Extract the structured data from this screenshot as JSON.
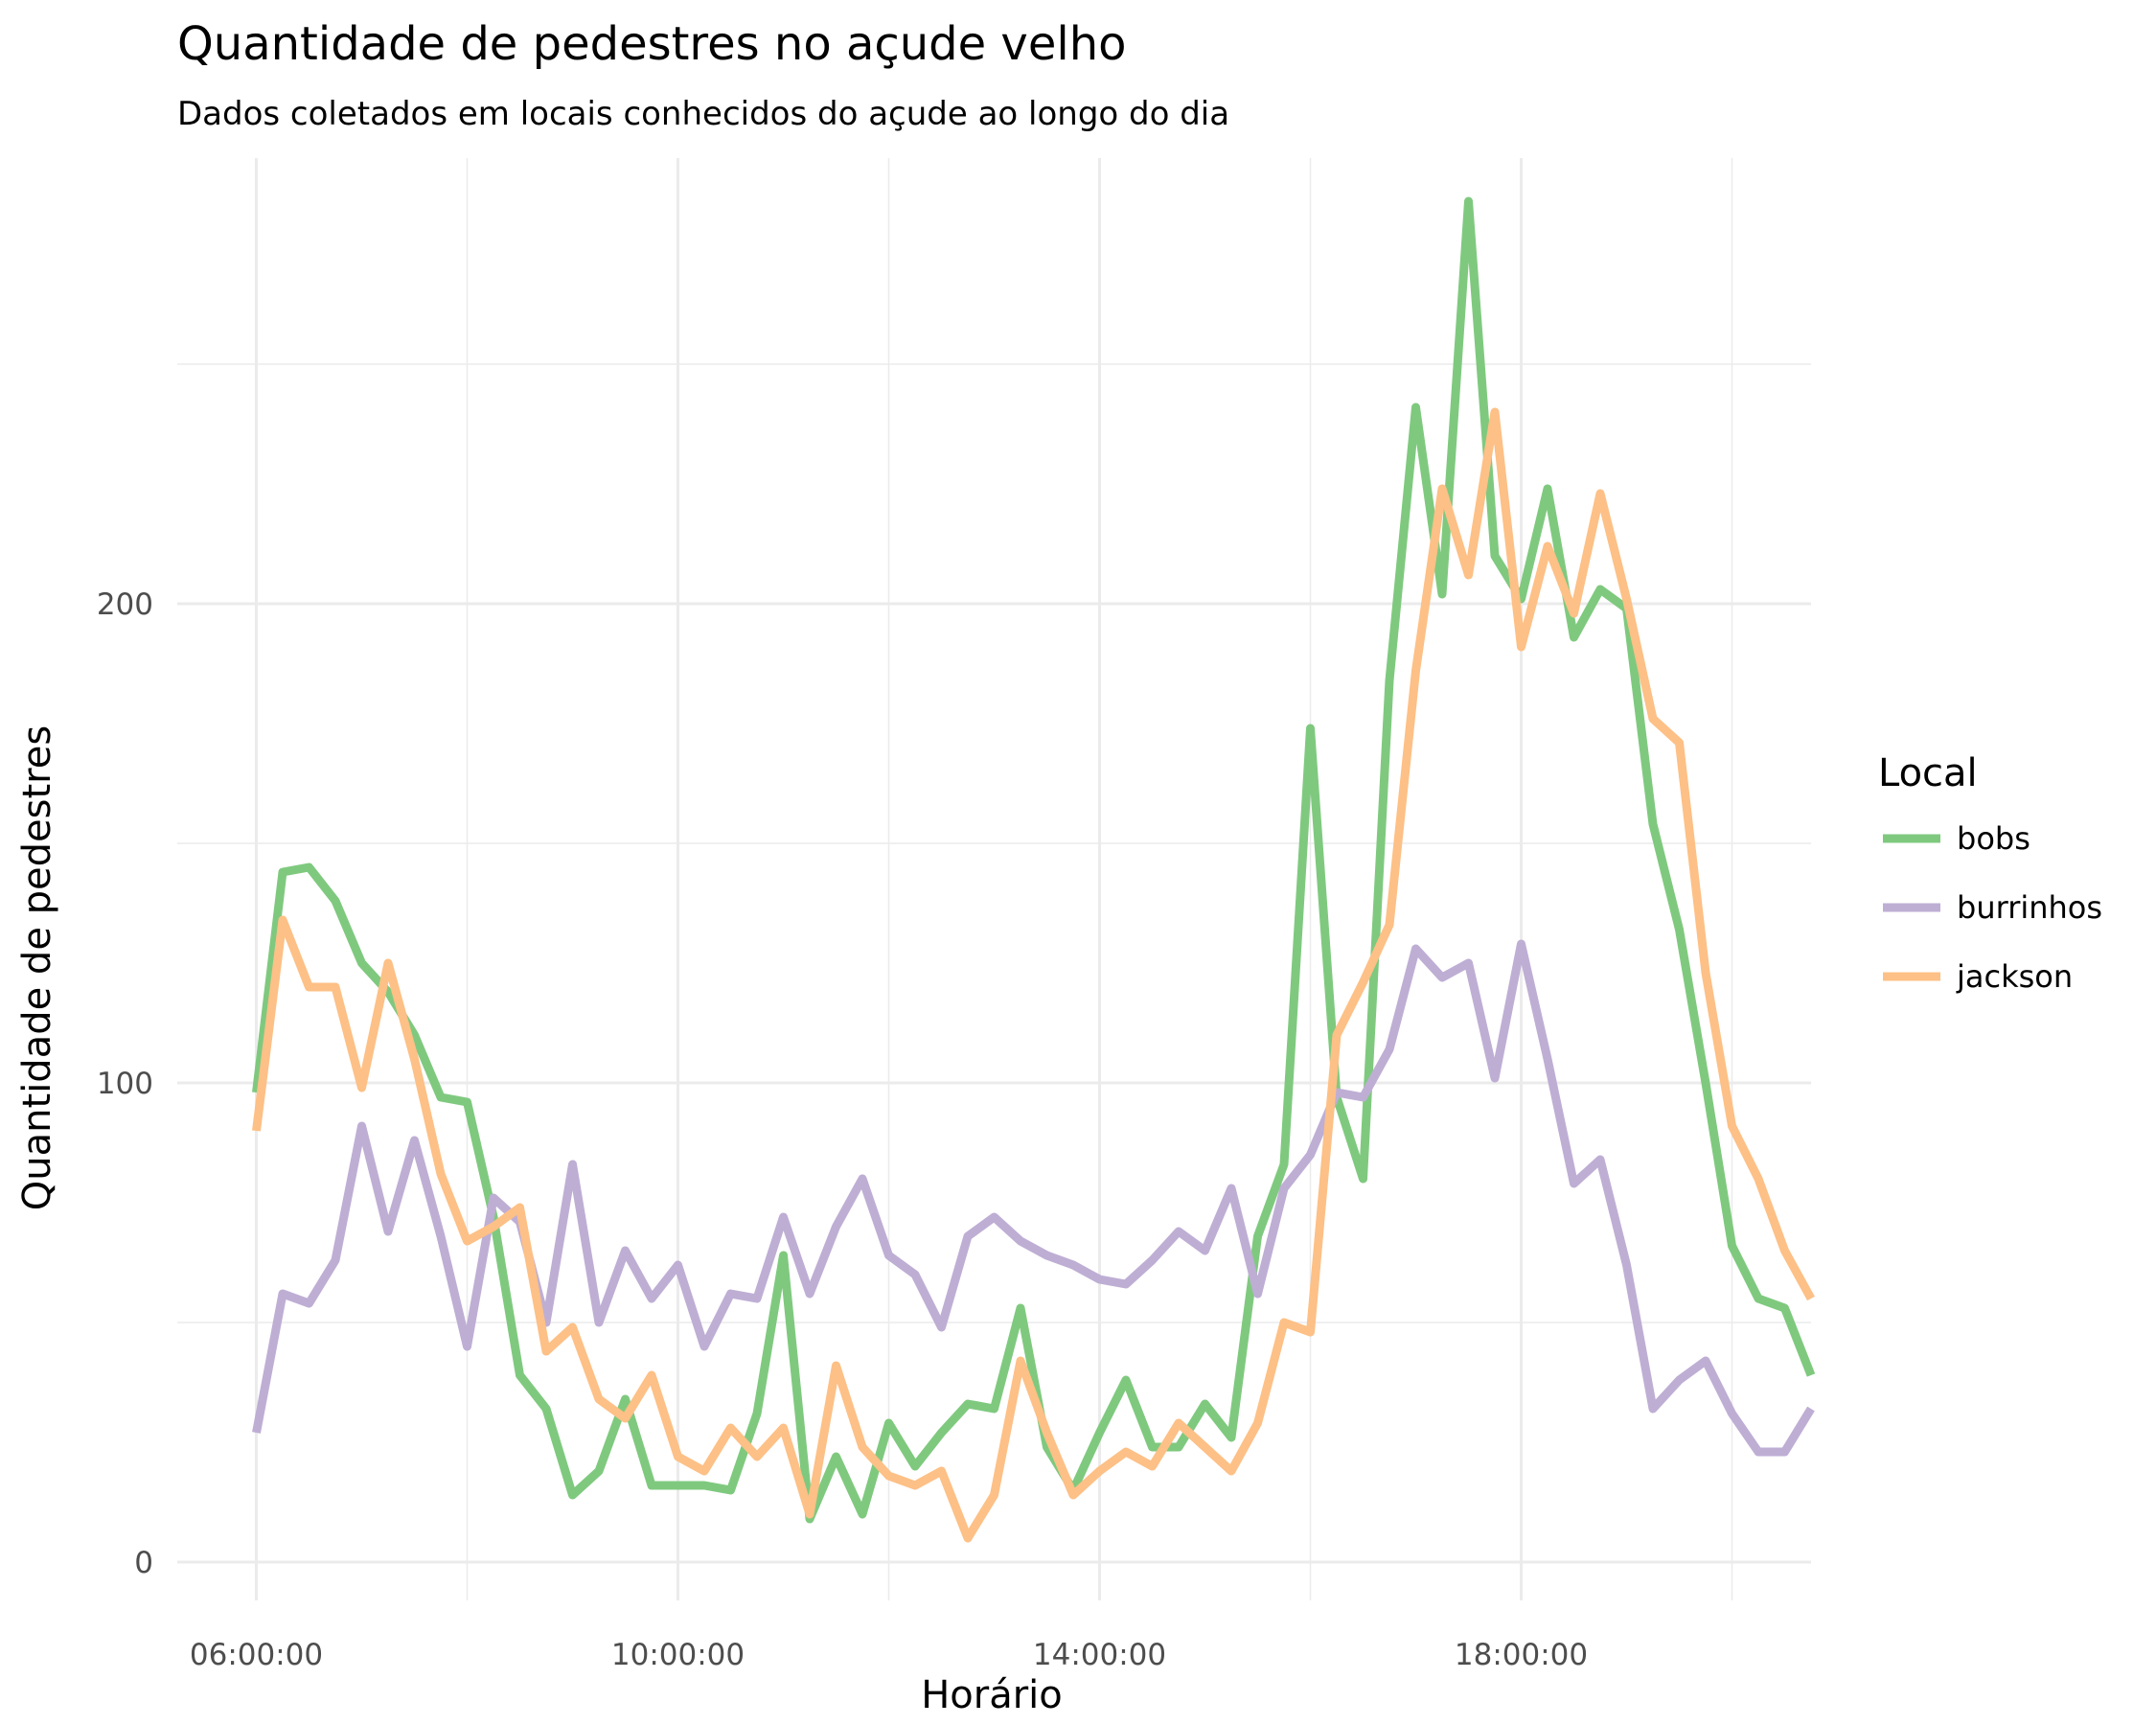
{
  "chart_data": {
    "type": "line",
    "title": "Quantidade de pedestres no açude velho",
    "subtitle": "Dados coletados em locais conhecidos do açude ao longo do dia",
    "xlabel": "Horário",
    "ylabel": "Quantidade de pedestres",
    "x_tick_labels": [
      "06:00:00",
      "10:00:00",
      "14:00:00",
      "18:00:00"
    ],
    "x_tick_values": [
      "06:00:00",
      "10:00:00",
      "14:00:00",
      "18:00:00"
    ],
    "y_tick_labels": [
      "0",
      "100",
      "200"
    ],
    "y_tick_values": [
      0,
      100,
      200
    ],
    "xlim": [
      "05:15:00",
      "20:45:00"
    ],
    "ylim": [
      -8,
      293
    ],
    "grid": true,
    "legend_title": "Local",
    "legend_position": "right",
    "x": [
      "06:00:00",
      "06:15:00",
      "06:30:00",
      "06:45:00",
      "07:00:00",
      "07:15:00",
      "07:30:00",
      "07:45:00",
      "08:00:00",
      "08:15:00",
      "08:30:00",
      "08:45:00",
      "09:00:00",
      "09:15:00",
      "09:30:00",
      "09:45:00",
      "10:00:00",
      "10:15:00",
      "10:30:00",
      "10:45:00",
      "11:00:00",
      "11:15:00",
      "11:30:00",
      "11:45:00",
      "12:00:00",
      "12:15:00",
      "12:30:00",
      "12:45:00",
      "13:00:00",
      "13:15:00",
      "13:30:00",
      "13:45:00",
      "14:00:00",
      "14:15:00",
      "14:30:00",
      "14:45:00",
      "15:00:00",
      "15:15:00",
      "15:30:00",
      "15:45:00",
      "16:00:00",
      "16:15:00",
      "16:30:00",
      "16:45:00",
      "17:00:00",
      "17:15:00",
      "17:30:00",
      "17:45:00",
      "18:00:00",
      "18:15:00",
      "18:30:00",
      "18:45:00",
      "19:00:00",
      "19:15:00",
      "19:30:00",
      "19:45:00",
      "20:00:00",
      "20:15:00",
      "20:30:00",
      "20:45:00"
    ],
    "series": [
      {
        "name": "bobs",
        "color": "#7fc97f",
        "values": [
          98,
          144,
          145,
          138,
          125,
          119,
          110,
          97,
          96,
          72,
          39,
          32,
          14,
          19,
          34,
          16,
          16,
          16,
          15,
          31,
          64,
          9,
          22,
          10,
          29,
          20,
          27,
          33,
          32,
          53,
          24,
          15,
          27,
          38,
          24,
          24,
          33,
          26,
          68,
          83,
          174,
          97,
          80,
          184,
          241,
          202,
          284,
          210,
          201,
          224,
          193,
          203,
          199,
          154,
          132,
          100,
          66,
          55,
          53,
          39
        ]
      },
      {
        "name": "burrinhos",
        "color": "#beaed4",
        "values": [
          27,
          56,
          54,
          63,
          91,
          69,
          88,
          68,
          45,
          76,
          71,
          50,
          83,
          50,
          65,
          55,
          62,
          45,
          56,
          55,
          72,
          56,
          70,
          80,
          64,
          60,
          49,
          68,
          72,
          67,
          64,
          62,
          59,
          58,
          63,
          69,
          65,
          78,
          56,
          78,
          85,
          98,
          97,
          107,
          128,
          122,
          125,
          101,
          129,
          105,
          79,
          84,
          62,
          32,
          38,
          42,
          31,
          23,
          23,
          32
        ]
      },
      {
        "name": "jackson",
        "color": "#fdc086",
        "values": [
          90,
          134,
          120,
          120,
          99,
          125,
          105,
          81,
          67,
          70,
          74,
          44,
          49,
          34,
          30,
          39,
          22,
          19,
          28,
          22,
          28,
          10,
          41,
          24,
          18,
          16,
          19,
          5,
          14,
          42,
          27,
          14,
          19,
          23,
          20,
          29,
          24,
          19,
          29,
          50,
          48,
          110,
          121,
          133,
          186,
          224,
          206,
          240,
          191,
          212,
          198,
          223,
          201,
          176,
          171,
          123,
          91,
          80,
          65,
          55
        ]
      }
    ]
  }
}
